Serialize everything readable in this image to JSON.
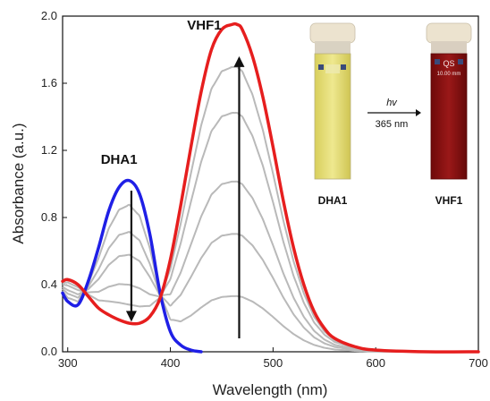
{
  "chart_data": {
    "type": "line",
    "xlabel": "Wavelength (nm)",
    "ylabel": "Absorbance (a.u.)",
    "xlim": [
      295,
      700
    ],
    "ylim": [
      0,
      2.0
    ],
    "x_ticks": [
      "300",
      "400",
      "500",
      "600",
      "700"
    ],
    "y_ticks": [
      "0.0",
      "0.4",
      "0.8",
      "1.2",
      "1.6",
      "2.0"
    ],
    "grid": false,
    "series": [
      {
        "name": "DHA1",
        "color": "#1f1fe6",
        "role": "initial",
        "x": [
          295,
          300,
          310,
          320,
          330,
          340,
          350,
          360,
          370,
          380,
          390,
          400,
          410,
          420,
          430
        ],
        "y": [
          0.35,
          0.3,
          0.28,
          0.42,
          0.62,
          0.84,
          0.98,
          1.02,
          0.94,
          0.7,
          0.35,
          0.12,
          0.04,
          0.01,
          0.0
        ]
      },
      {
        "name": "VHF1",
        "color": "#e61e1e",
        "role": "final",
        "x": [
          295,
          300,
          310,
          320,
          330,
          340,
          350,
          360,
          370,
          380,
          390,
          400,
          410,
          420,
          430,
          440,
          450,
          460,
          465,
          470,
          480,
          490,
          500,
          510,
          520,
          530,
          540,
          550,
          560,
          580,
          600,
          650,
          700
        ],
        "y": [
          0.42,
          0.43,
          0.4,
          0.33,
          0.26,
          0.22,
          0.19,
          0.17,
          0.17,
          0.21,
          0.32,
          0.55,
          0.87,
          1.22,
          1.55,
          1.8,
          1.92,
          1.95,
          1.95,
          1.92,
          1.76,
          1.52,
          1.22,
          0.9,
          0.62,
          0.4,
          0.24,
          0.14,
          0.08,
          0.03,
          0.01,
          0.0,
          0.0
        ]
      }
    ],
    "intermediates": {
      "color": "#b9b9b9",
      "fractions": [
        0.17,
        0.36,
        0.52,
        0.73,
        0.87
      ]
    },
    "annotations": [
      {
        "text": "DHA1",
        "x": 350,
        "y": 1.12
      },
      {
        "text": "VHF1",
        "x": 433,
        "y": 1.92
      }
    ],
    "arrows": [
      {
        "direction": "down",
        "x": 362,
        "y_from": 0.96,
        "y_to": 0.19
      },
      {
        "direction": "up",
        "x": 467,
        "y_from": 0.08,
        "y_to": 1.75
      }
    ]
  },
  "inset": {
    "left_vial_label": "DHA1",
    "right_vial_label": "VHF1",
    "arrow_top_text": "hv",
    "arrow_bottom_text": "365 nm",
    "vial_cap_text": "QS",
    "vial_cap_subtext": "10.00 mm",
    "left_liquid_color": "#e6df7a",
    "right_liquid_color": "#8a1212"
  }
}
